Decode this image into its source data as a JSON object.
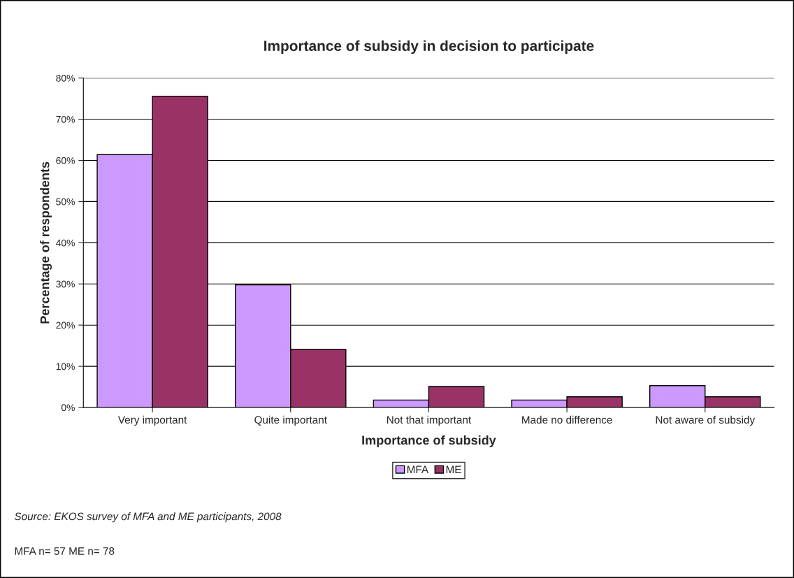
{
  "chart_data": {
    "type": "bar",
    "title": "Importance of subsidy in decision to participate",
    "xlabel": "Importance of subsidy",
    "ylabel": "Percentage of respondents",
    "categories": [
      "Very important",
      "Quite important",
      "Not that important",
      "Made no difference",
      "Not aware of subsidy"
    ],
    "series": [
      {
        "name": "MFA",
        "color": "#cc99ff",
        "values": [
          61.4,
          29.8,
          1.8,
          1.8,
          5.3
        ]
      },
      {
        "name": "ME",
        "color": "#993366",
        "values": [
          75.6,
          14.1,
          5.1,
          2.6,
          2.6
        ]
      }
    ],
    "ylim": [
      0,
      80
    ],
    "yticks": [
      {
        "value": 0,
        "label": "0%"
      },
      {
        "value": 10,
        "label": "10%"
      },
      {
        "value": 20,
        "label": "20%"
      },
      {
        "value": 30,
        "label": "30%"
      },
      {
        "value": 40,
        "label": "40%"
      },
      {
        "value": 50,
        "label": "50%"
      },
      {
        "value": 60,
        "label": "60%"
      },
      {
        "value": 70,
        "label": "70%"
      },
      {
        "value": 80,
        "label": "80%"
      }
    ],
    "grid": "y",
    "legend": "bottom",
    "annotations": [
      "Source: EKOS survey of MFA and ME participants, 2008",
      "MFA n= 57 ME n= 78"
    ]
  }
}
